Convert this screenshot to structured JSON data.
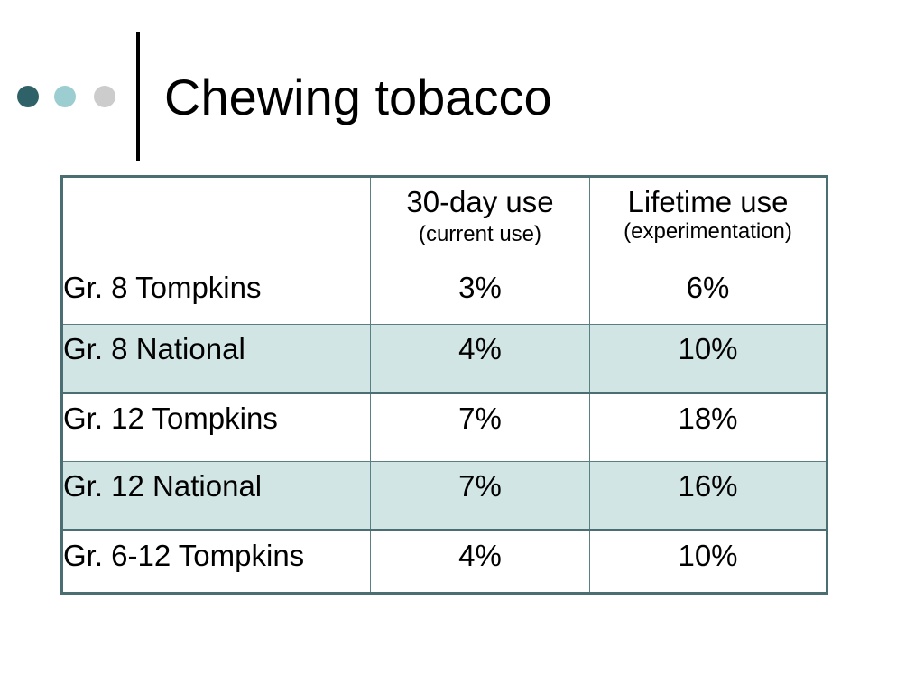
{
  "slide": {
    "title": "Chewing tobacco",
    "bullet_colors": [
      "#2f6168",
      "#9ccdd0",
      "#cccccc"
    ]
  },
  "table": {
    "header": {
      "col1": "",
      "col2_main": "30-day use",
      "col2_sub": "(current use)",
      "col3_main": "Lifetime use",
      "col3_sub": "(experimentation)"
    },
    "rows": [
      {
        "label": "Gr. 8 Tompkins",
        "day30": "3%",
        "lifetime": "6%"
      },
      {
        "label": "Gr. 8 National",
        "day30": "4%",
        "lifetime": "10%"
      },
      {
        "label": "Gr. 12 Tompkins",
        "day30": "7%",
        "lifetime": "18%"
      },
      {
        "label": "Gr. 12 National",
        "day30": "7%",
        "lifetime": "16%"
      },
      {
        "label": "Gr. 6-12 Tompkins",
        "day30": "4%",
        "lifetime": "10%"
      }
    ],
    "colors": {
      "border": "#4a6e72",
      "shaded_row": "#d1e6e4"
    }
  }
}
